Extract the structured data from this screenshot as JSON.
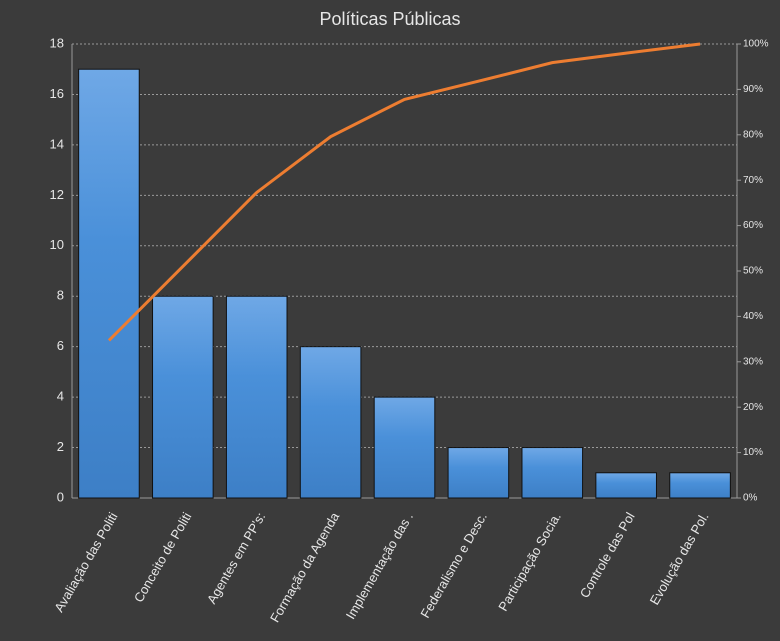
{
  "chart_data": {
    "type": "pareto",
    "title": "Políticas Públicas",
    "categories": [
      "Avaliação das Politi",
      "Conceito de Politi",
      "Agentes em PP's:",
      "Formação da Agenda",
      "Implementação das .",
      "Federalismo e Desc.",
      "Participação Socia.",
      "Controle das Pol",
      "Evolução das Pol."
    ],
    "series": [
      {
        "type": "bar",
        "color": "#4a90d9",
        "values": [
          17,
          8,
          8,
          6,
          4,
          2,
          2,
          1,
          1
        ]
      },
      {
        "type": "line",
        "color": "#ed7d31",
        "axis": "y2",
        "values": [
          34.7,
          51.0,
          67.3,
          79.6,
          87.8,
          91.8,
          95.9,
          98.0,
          100
        ]
      }
    ],
    "ylim": [
      0,
      18
    ],
    "yticks": [
      0,
      2,
      4,
      6,
      8,
      10,
      12,
      14,
      16,
      18
    ],
    "y2lim": [
      0,
      100
    ],
    "y2ticks": [
      {
        "value": 0,
        "label": "0%"
      },
      {
        "value": 10,
        "label": "10%"
      },
      {
        "value": 20,
        "label": "20%"
      },
      {
        "value": 30,
        "label": "30%"
      },
      {
        "value": 40,
        "label": "40%"
      },
      {
        "value": 50,
        "label": "50%"
      },
      {
        "value": 60,
        "label": "60%"
      },
      {
        "value": 70,
        "label": "70%"
      },
      {
        "value": 80,
        "label": "80%"
      },
      {
        "value": 90,
        "label": "90%"
      },
      {
        "value": 100,
        "label": "100%"
      }
    ],
    "grid": true
  }
}
